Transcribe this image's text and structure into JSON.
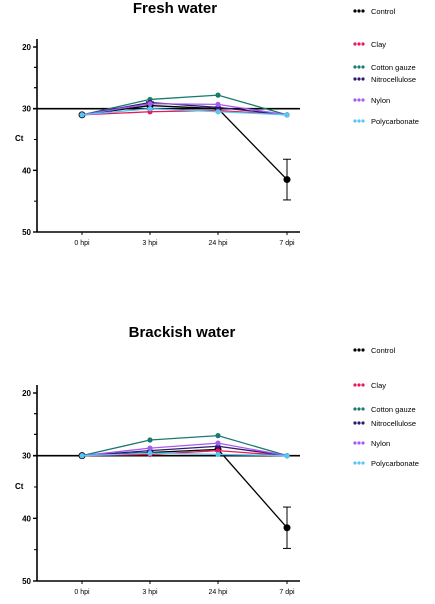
{
  "chart_data": [
    {
      "type": "line",
      "title": "Fresh water",
      "ylabel": "Ct",
      "categories": [
        "0 hpi",
        "3 hpi",
        "24 hpi",
        "7 dpi"
      ],
      "yticks": [
        20,
        30,
        40,
        50
      ],
      "ylim": [
        50,
        20
      ],
      "y_inverted": true,
      "legend_position": "right",
      "series": [
        {
          "name": "Control",
          "color": "#000000",
          "values": [
            31,
            29.5,
            30,
            41.5
          ],
          "errors": [
            0,
            0.6,
            0,
            3.3
          ]
        },
        {
          "name": "Clay",
          "color": "#e8195a",
          "values": [
            31,
            30.5,
            30.3,
            31
          ]
        },
        {
          "name": "Cotton gauze",
          "color": "#1a7a6e",
          "values": [
            31,
            28.5,
            27.8,
            31
          ]
        },
        {
          "name": "Nitrocellulose",
          "color": "#2d1a6e",
          "values": [
            31,
            29,
            29.8,
            31
          ]
        },
        {
          "name": "Nylon",
          "color": "#a45cf0",
          "values": [
            31,
            29.2,
            29.3,
            31
          ]
        },
        {
          "name": "Polycarbonate",
          "color": "#56c7f5",
          "values": [
            31,
            30,
            30.5,
            31
          ]
        }
      ]
    },
    {
      "type": "line",
      "title": "Brackish water",
      "ylabel": "Ct",
      "categories": [
        "0 hpi",
        "3 hpi",
        "24 hpi",
        "7 dpi"
      ],
      "yticks": [
        20,
        30,
        40,
        50
      ],
      "ylim": [
        50,
        20
      ],
      "y_inverted": true,
      "legend_position": "right",
      "series": [
        {
          "name": "Control",
          "color": "#000000",
          "values": [
            30,
            29.5,
            29,
            41.5
          ],
          "errors": [
            0,
            0,
            0,
            3.3
          ]
        },
        {
          "name": "Clay",
          "color": "#e8195a",
          "values": [
            30,
            29.8,
            29.2,
            30
          ]
        },
        {
          "name": "Cotton gauze",
          "color": "#1a7a6e",
          "values": [
            30,
            27.5,
            26.8,
            30
          ]
        },
        {
          "name": "Nitrocellulose",
          "color": "#2d1a6e",
          "values": [
            30,
            29.2,
            28.5,
            30
          ]
        },
        {
          "name": "Nylon",
          "color": "#a45cf0",
          "values": [
            30,
            28.8,
            28,
            30
          ]
        },
        {
          "name": "Polycarbonate",
          "color": "#56c7f5",
          "values": [
            30,
            29.6,
            29.8,
            30
          ]
        }
      ]
    }
  ]
}
